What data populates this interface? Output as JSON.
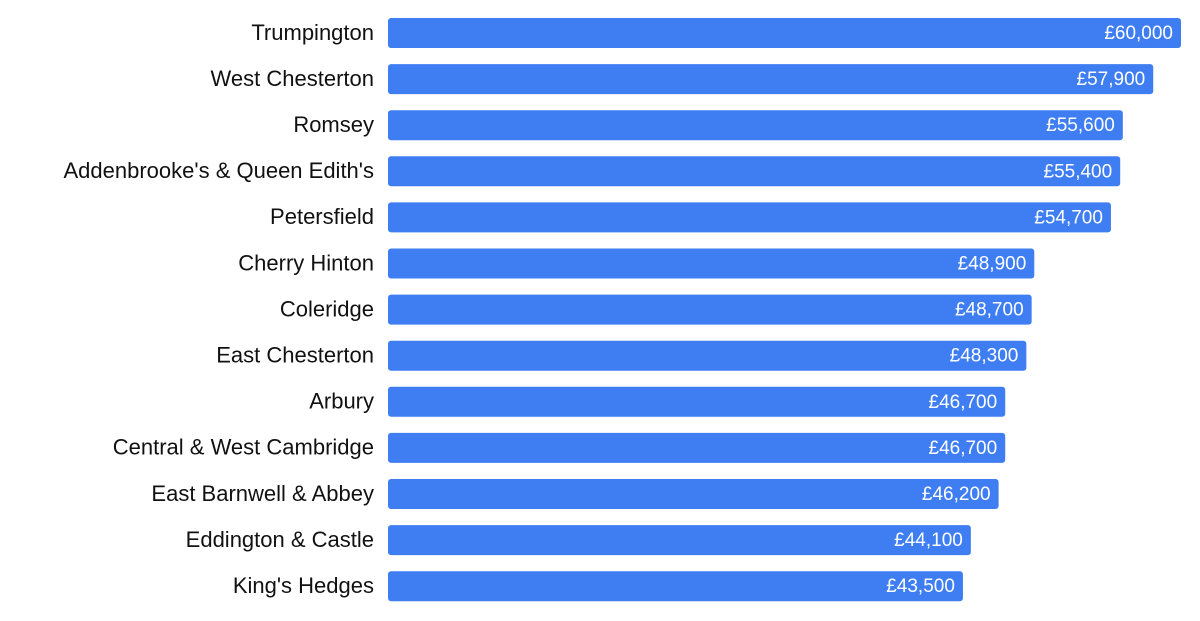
{
  "chart_data": {
    "type": "bar",
    "orientation": "horizontal",
    "categories": [
      "Trumpington",
      "West Chesterton",
      "Romsey",
      "Addenbrooke's & Queen Edith's",
      "Petersfield",
      "Cherry Hinton",
      "Coleridge",
      "East Chesterton",
      "Arbury",
      "Central & West Cambridge",
      "East Barnwell & Abbey",
      "Eddington & Castle",
      "King's Hedges"
    ],
    "values": [
      60000,
      57900,
      55600,
      55400,
      54700,
      48900,
      48700,
      48300,
      46700,
      46700,
      46200,
      44100,
      43500
    ],
    "value_labels": [
      "£60,000",
      "£57,900",
      "£55,600",
      "£55,400",
      "£54,700",
      "£48,900",
      "£48,700",
      "£48,300",
      "£46,700",
      "£46,700",
      "£46,200",
      "£44,100",
      "£43,500"
    ],
    "color": "#3e7ef2"
  }
}
